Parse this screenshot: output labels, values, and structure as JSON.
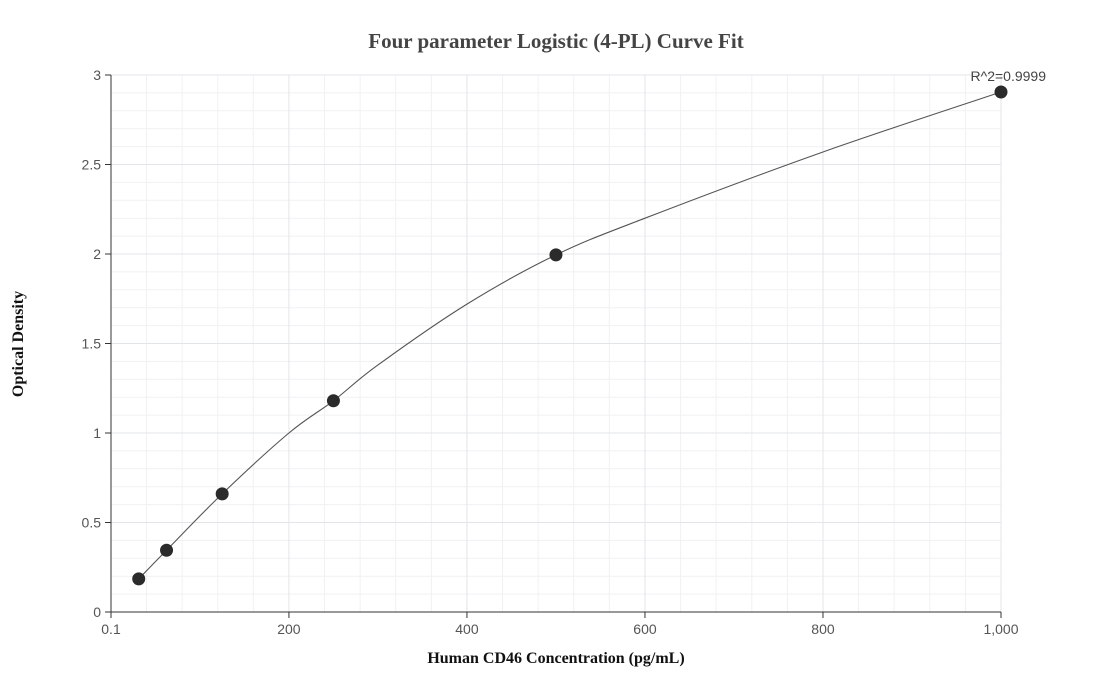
{
  "chart_data": {
    "type": "scatter",
    "title": "Four parameter Logistic (4-PL) Curve Fit",
    "xlabel": "Human CD46 Concentration (pg/mL)",
    "ylabel": "Optical Density",
    "xlim": [
      0.1,
      1000
    ],
    "ylim": [
      0,
      3
    ],
    "x_ticks": [
      0.1,
      200,
      400,
      600,
      800,
      1000
    ],
    "x_tick_labels": [
      "0.1",
      "200",
      "400",
      "600",
      "800",
      "1,000"
    ],
    "y_ticks": [
      0,
      0.5,
      1,
      1.5,
      2,
      2.5,
      3
    ],
    "y_tick_labels": [
      "0",
      "0.5",
      "1",
      "1.5",
      "2",
      "2.5",
      "3"
    ],
    "grid": true,
    "series": [
      {
        "x": [
          31.25,
          62.5,
          125,
          250,
          500,
          1000
        ],
        "y": [
          0.185,
          0.345,
          0.66,
          1.18,
          1.995,
          2.905
        ]
      }
    ],
    "fit_curve": {
      "x": [
        31.25,
        62.5,
        125,
        200,
        250,
        300,
        400,
        500,
        600,
        800,
        1000
      ],
      "y": [
        0.185,
        0.345,
        0.66,
        1.0,
        1.18,
        1.38,
        1.72,
        1.995,
        2.2,
        2.57,
        2.905
      ]
    },
    "annotation": "R^2=0.9999",
    "colors": {
      "points": "#2b2b2b",
      "curve": "#555555",
      "grid": "#e2e5e8"
    }
  }
}
